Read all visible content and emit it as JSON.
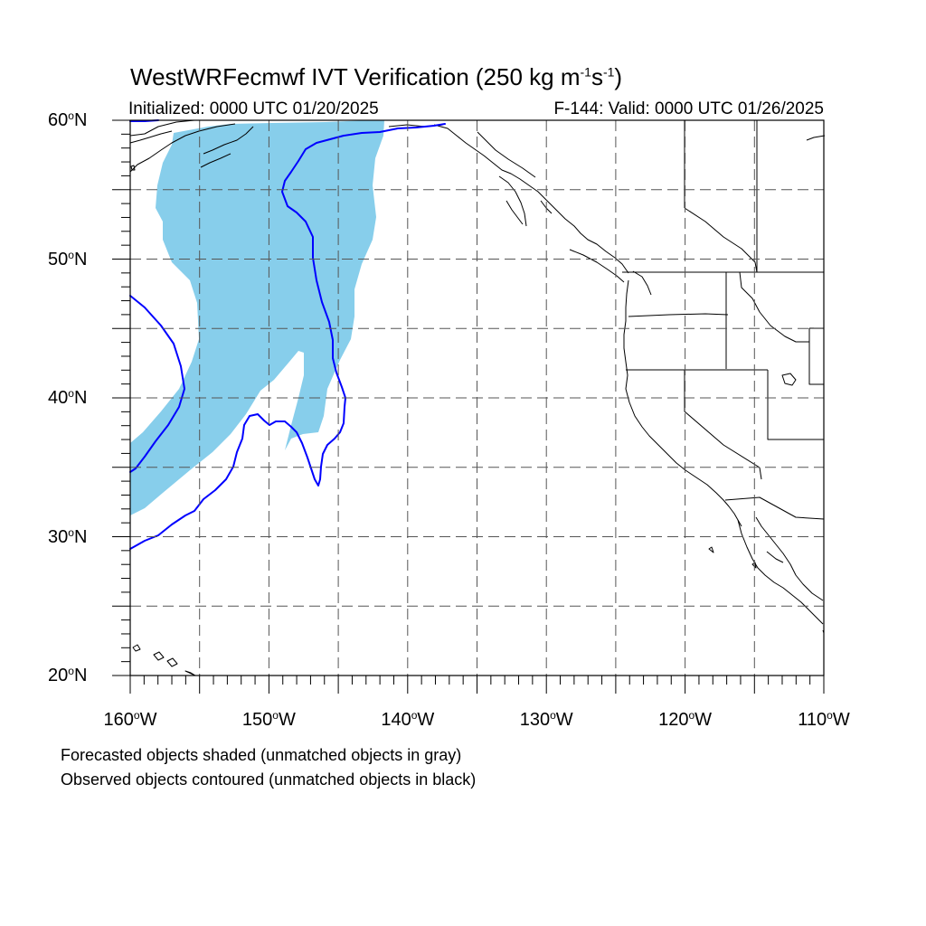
{
  "title": {
    "prefix": "WestWRFecmwf IVT Verification (250 kg m",
    "sup1": "-1",
    "mid": "s",
    "sup2": "-1",
    "suffix": ")"
  },
  "subtitle_left": "Initialized: 0000 UTC 01/20/2025",
  "subtitle_right": "F-144: Valid: 0000 UTC 01/26/2025",
  "lat_labels": [
    {
      "value": 60,
      "text": "60",
      "suffix": "N"
    },
    {
      "value": 50,
      "text": "50",
      "suffix": "N"
    },
    {
      "value": 40,
      "text": "40",
      "suffix": "N"
    },
    {
      "value": 30,
      "text": "30",
      "suffix": "N"
    },
    {
      "value": 20,
      "text": "20",
      "suffix": "N"
    }
  ],
  "lon_labels": [
    {
      "value": -160,
      "text": "160",
      "suffix": "W"
    },
    {
      "value": -150,
      "text": "150",
      "suffix": "W"
    },
    {
      "value": -140,
      "text": "140",
      "suffix": "W"
    },
    {
      "value": -130,
      "text": "130",
      "suffix": "W"
    },
    {
      "value": -120,
      "text": "120",
      "suffix": "W"
    },
    {
      "value": -110,
      "text": "110",
      "suffix": "W"
    }
  ],
  "degree_symbol": "o",
  "notes": [
    "Forecasted objects shaded (unmatched objects in gray)",
    "Observed objects contoured (unmatched objects in black)"
  ],
  "map": {
    "lon_range": [
      -160,
      -110
    ],
    "lat_range": [
      20,
      60
    ],
    "grid_step": 5,
    "grid": true
  },
  "colors": {
    "forecast_fill": "#87ceeb",
    "observed_contour": "#0000ff",
    "coastline": "#000000",
    "gridline": "#555555"
  }
}
